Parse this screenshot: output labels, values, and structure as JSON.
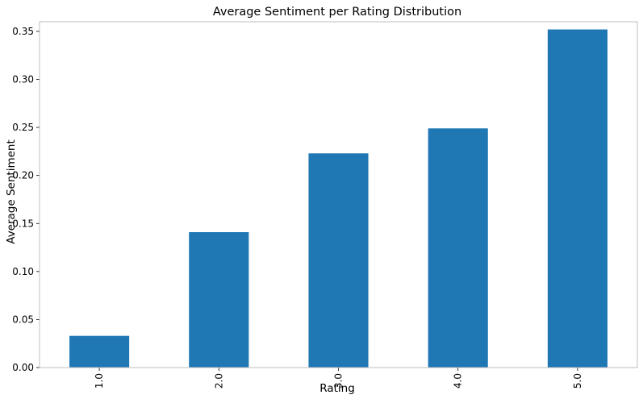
{
  "chart_data": {
    "type": "bar",
    "title": "Average Sentiment per Rating Distribution",
    "xlabel": "Rating",
    "ylabel": "Average Sentiment",
    "categories": [
      "1.0",
      "2.0",
      "3.0",
      "4.0",
      "5.0"
    ],
    "values": [
      0.033,
      0.141,
      0.223,
      0.249,
      0.352
    ],
    "ylim": [
      0,
      0.36
    ],
    "yticks": [
      0.0,
      0.05,
      0.1,
      0.15,
      0.2,
      0.25,
      0.3,
      0.35
    ],
    "ytick_labels": [
      "0.00",
      "0.05",
      "0.10",
      "0.15",
      "0.20",
      "0.25",
      "0.30",
      "0.35"
    ],
    "xtick_rotation": "vertical",
    "grid": false,
    "legend": "none",
    "bar_color": "#1f77b4",
    "frame_color": "#bfbfbf"
  }
}
